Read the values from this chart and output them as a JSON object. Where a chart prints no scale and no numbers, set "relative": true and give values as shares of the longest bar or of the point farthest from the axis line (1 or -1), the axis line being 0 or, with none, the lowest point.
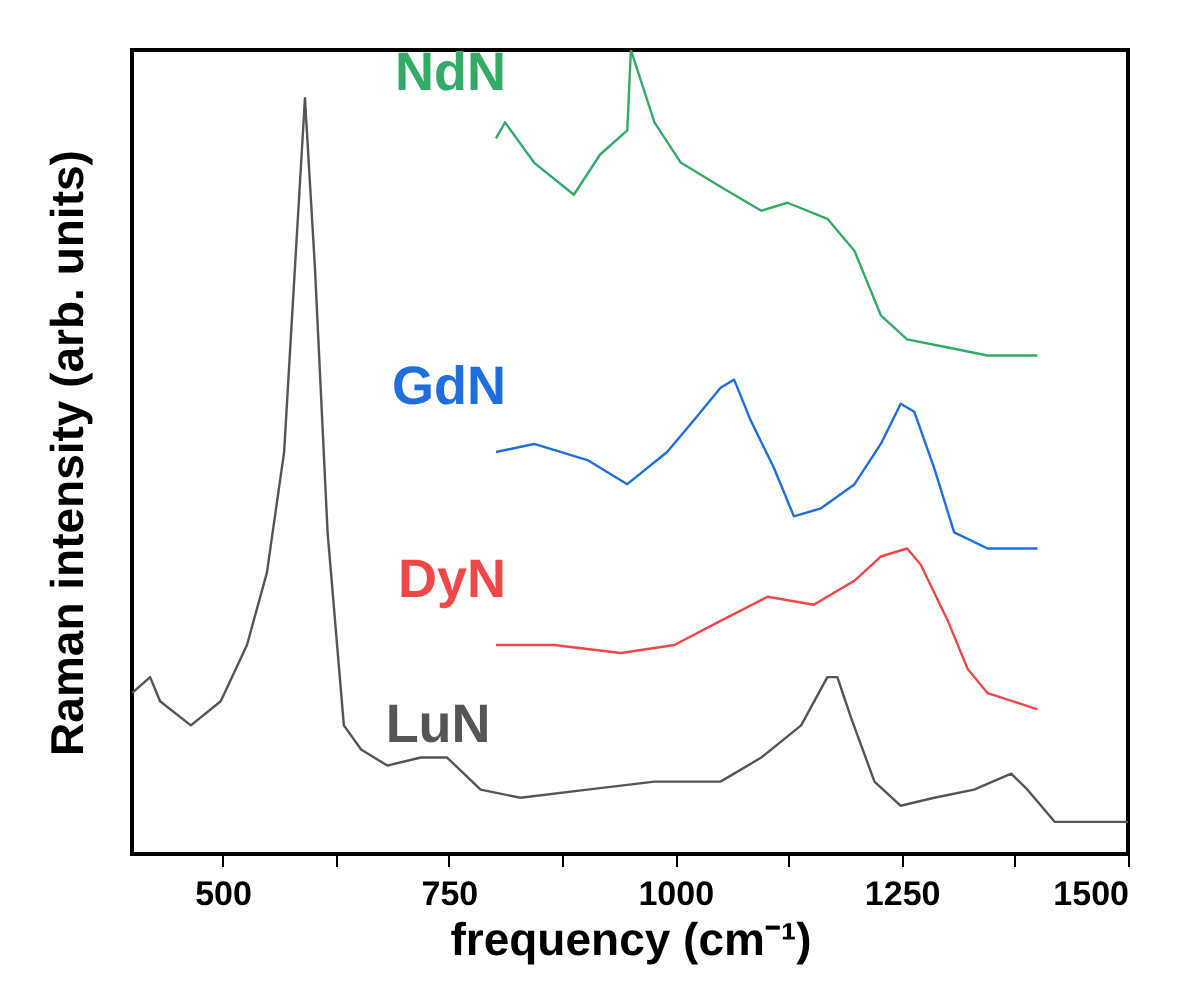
{
  "chart_data": {
    "type": "line",
    "relative": true,
    "xlabel": "frequency (cm⁻¹)",
    "ylabel": "Raman intensity (arb. units)",
    "xlim": [
      400,
      1500
    ],
    "xticks": [
      {
        "value": 500,
        "label": "500"
      },
      {
        "value": 625,
        "label": null
      },
      {
        "value": 750,
        "label": "750"
      },
      {
        "value": 875,
        "label": null
      },
      {
        "value": 1000,
        "label": "1000"
      },
      {
        "value": 1125,
        "label": null
      },
      {
        "value": 1250,
        "label": "1250"
      },
      {
        "value": 1375,
        "label": null
      },
      {
        "value": 1500,
        "label": "1500"
      }
    ],
    "grid": false,
    "series": [
      {
        "name": "NdN",
        "color": "#33aa66",
        "x": [
          802,
          812,
          844,
          888,
          917,
          947,
          951,
          977,
          1006,
          1050,
          1095,
          1124,
          1168,
          1198,
          1227,
          1256,
          1301,
          1345,
          1400
        ],
        "values": [
          0.89,
          0.91,
          0.86,
          0.82,
          0.87,
          0.9,
          1.0,
          0.91,
          0.86,
          0.83,
          0.8,
          0.81,
          0.79,
          0.75,
          0.67,
          0.64,
          0.63,
          0.62,
          0.62
        ]
      },
      {
        "name": "GdN",
        "color": "#1e6ee0",
        "x": [
          802,
          844,
          903,
          947,
          991,
          1021,
          1050,
          1065,
          1083,
          1109,
          1131,
          1161,
          1198,
          1227,
          1249,
          1264,
          1286,
          1308,
          1345,
          1400
        ],
        "values": [
          0.5,
          0.51,
          0.49,
          0.46,
          0.5,
          0.54,
          0.58,
          0.59,
          0.54,
          0.48,
          0.42,
          0.43,
          0.46,
          0.51,
          0.56,
          0.55,
          0.48,
          0.4,
          0.38,
          0.38
        ]
      },
      {
        "name": "DyN",
        "color": "#f04848",
        "x": [
          802,
          866,
          940,
          999,
          1050,
          1102,
          1153,
          1198,
          1227,
          1256,
          1271,
          1301,
          1323,
          1345,
          1400
        ],
        "values": [
          0.26,
          0.26,
          0.25,
          0.26,
          0.29,
          0.32,
          0.31,
          0.34,
          0.37,
          0.38,
          0.36,
          0.29,
          0.23,
          0.2,
          0.18
        ]
      },
      {
        "name": "LuN",
        "color": "#555555",
        "x": [
          400,
          420,
          431,
          465,
          498,
          527,
          549,
          568,
          580,
          591,
          602,
          616,
          634,
          653,
          682,
          719,
          748,
          785,
          829,
          903,
          977,
          1050,
          1095,
          1139,
          1168,
          1179,
          1194,
          1220,
          1249,
          1286,
          1330,
          1371,
          1389,
          1419,
          1500
        ],
        "values": [
          0.2,
          0.22,
          0.19,
          0.16,
          0.19,
          0.26,
          0.35,
          0.5,
          0.73,
          0.94,
          0.73,
          0.4,
          0.16,
          0.13,
          0.11,
          0.12,
          0.12,
          0.08,
          0.07,
          0.08,
          0.09,
          0.09,
          0.12,
          0.16,
          0.22,
          0.22,
          0.17,
          0.09,
          0.06,
          0.07,
          0.08,
          0.1,
          0.08,
          0.04,
          0.04
        ]
      }
    ]
  }
}
